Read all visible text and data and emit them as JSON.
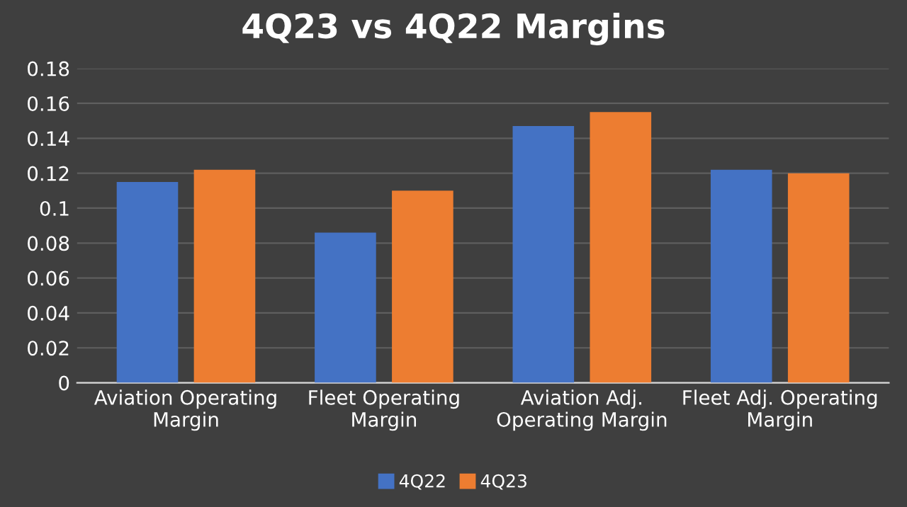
{
  "chart_data": {
    "type": "bar",
    "title": "4Q23 vs 4Q22 Margins",
    "categories": [
      "Aviation Operating\nMargin",
      "Fleet Operating\nMargin",
      "Aviation Adj.\nOperating Margin",
      "Fleet Adj. Operating\nMargin"
    ],
    "series": [
      {
        "name": "4Q22",
        "color": "#4472c4",
        "values": [
          0.115,
          0.086,
          0.147,
          0.122
        ]
      },
      {
        "name": "4Q23",
        "color": "#ed7d31",
        "values": [
          0.122,
          0.11,
          0.155,
          0.12
        ]
      }
    ],
    "ylim": [
      0,
      0.18
    ],
    "yticks": [
      0,
      {
        "value": 0.02,
        "label": "0.02"
      },
      {
        "value": 0.04,
        "label": "0.04"
      },
      {
        "value": 0.06,
        "label": "0.06"
      },
      {
        "value": 0.08,
        "label": "0.08"
      },
      {
        "value": 0.1,
        "label": "0.1"
      },
      {
        "value": 0.12,
        "label": "0.12"
      },
      {
        "value": 0.14,
        "label": "0.14"
      },
      {
        "value": 0.16,
        "label": "0.16"
      },
      {
        "value": 0.18,
        "label": "0.18"
      }
    ],
    "grid": "y",
    "legend": "bottom"
  }
}
